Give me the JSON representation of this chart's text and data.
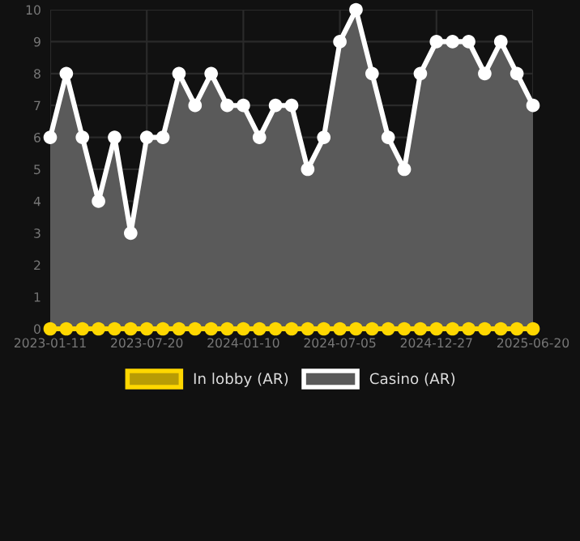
{
  "chart_data": {
    "type": "area",
    "categories": [
      "2023-01-11",
      null,
      null,
      null,
      null,
      null,
      "2023-07-20",
      null,
      null,
      null,
      null,
      null,
      "2024-01-10",
      null,
      null,
      null,
      null,
      null,
      "2024-07-05",
      null,
      null,
      null,
      null,
      null,
      "2024-12-27",
      null,
      null,
      null,
      null,
      null,
      "2025-06-20"
    ],
    "series": [
      {
        "name": "In lobby (AR)",
        "type": "line",
        "color": "#ffd700",
        "values": [
          0,
          0,
          0,
          0,
          0,
          0,
          0,
          0,
          0,
          0,
          0,
          0,
          0,
          0,
          0,
          0,
          0,
          0,
          0,
          0,
          0,
          0,
          0,
          0,
          0,
          0,
          0,
          0,
          0,
          0,
          0
        ]
      },
      {
        "name": "Casino (AR)",
        "color": "#ffffff",
        "values": [
          6,
          8,
          6,
          4,
          6,
          3,
          6,
          6,
          8,
          7,
          8,
          7,
          7,
          6,
          7,
          7,
          5,
          6,
          9,
          10,
          8,
          6,
          5,
          8,
          9,
          9,
          9,
          8,
          9,
          8,
          7
        ]
      }
    ],
    "ylim": [
      0,
      10
    ],
    "yticks": [
      0,
      1,
      2,
      3,
      4,
      5,
      6,
      7,
      8,
      9,
      10
    ],
    "grid": true,
    "legend": "bottom",
    "marker": "circle",
    "line_style": "solid"
  }
}
